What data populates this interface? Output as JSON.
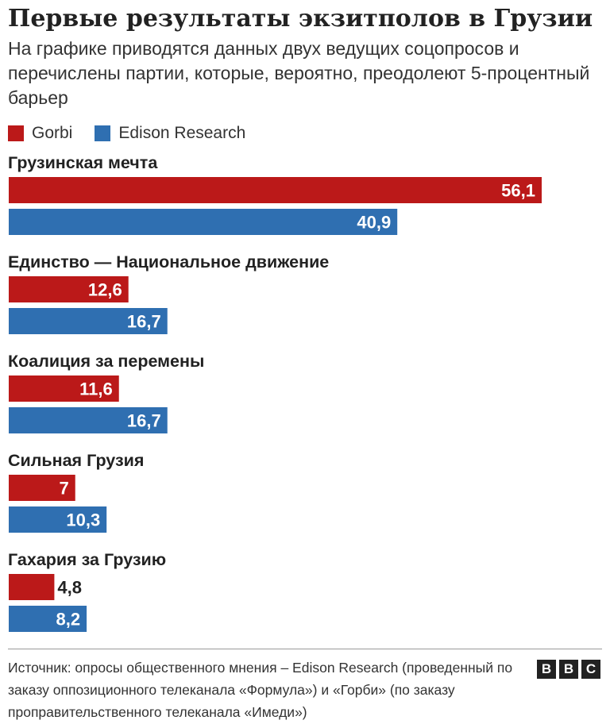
{
  "title": "Первые результаты экзитполов в Грузии",
  "subtitle": "На графике приводятся данных двух ведущих соцопросов и перечислены партии, которые, вероятно, преодолеют 5-процентный барьер",
  "source": "Источник: опросы общественного мнения – Edison Research (проведенный по заказу оппозиционного телеканала «Формула») и «Горби» (по заказу проправительственного телеканала «Имеди»)",
  "logo": [
    "B",
    "B",
    "C"
  ],
  "colors": {
    "gorbi": "#bb1919",
    "edison": "#2f6fb1",
    "label_out": "#222222",
    "label_in": "#ffffff"
  },
  "chart_data": {
    "type": "bar",
    "orientation": "horizontal",
    "categories": [
      "Грузинская мечта",
      "Единство — Национальное движение",
      "Коалиция за перемены",
      "Сильная Грузия",
      "Гахария за Грузию"
    ],
    "series": [
      {
        "name": "Gorbi",
        "color": "#bb1919",
        "values": [
          56.1,
          12.6,
          11.6,
          7,
          4.8
        ],
        "labels": [
          "56,1",
          "12,6",
          "11,6",
          "7",
          "4,8"
        ]
      },
      {
        "name": "Edison Research",
        "color": "#2f6fb1",
        "values": [
          40.9,
          16.7,
          16.7,
          10.3,
          8.2
        ],
        "labels": [
          "40,9",
          "16,7",
          "16,7",
          "10,3",
          "8,2"
        ]
      }
    ],
    "xlim": [
      0,
      56.1
    ],
    "grid": false,
    "legend_position": "top-left",
    "data_labels": true
  }
}
